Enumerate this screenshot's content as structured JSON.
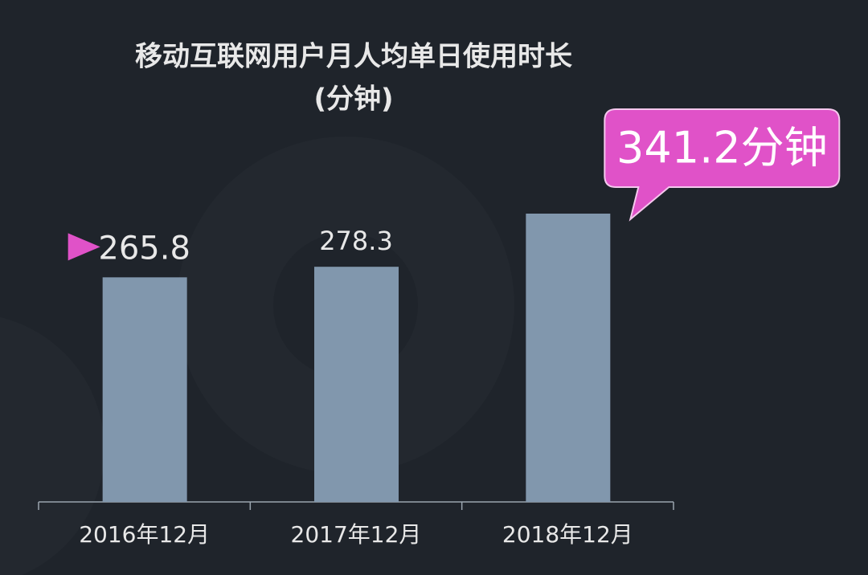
{
  "chart_data": {
    "type": "bar",
    "title": "移动互联网用户月人均单日使用时长",
    "subtitle": "(分钟)",
    "categories": [
      "2016年12月",
      "2017年12月",
      "2018年12月"
    ],
    "values": [
      265.8,
      278.3,
      341.2
    ],
    "value_labels": [
      "265.8",
      "278.3",
      "341.2分钟"
    ],
    "color": "#8197ad",
    "highlight_color": "#e052c8"
  }
}
